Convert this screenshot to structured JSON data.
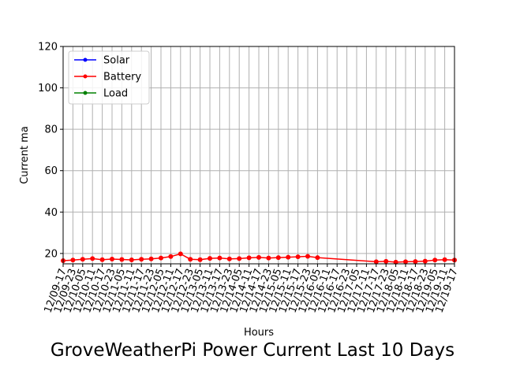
{
  "chart_data": {
    "type": "line",
    "title": "GroveWeatherPi Power Current Last 10 Days",
    "xlabel": "Hours",
    "ylabel": "Current ma",
    "ylim": [
      15,
      120
    ],
    "yticks": [
      20,
      40,
      60,
      80,
      100,
      120
    ],
    "x_start": "12/09-17",
    "x_end": "12/19-17",
    "xticks": [
      "12/09-17",
      "12/09-23",
      "12/10-05",
      "12/10-11",
      "12/10-17",
      "12/10-23",
      "12/11-05",
      "12/11-11",
      "12/11-17",
      "12/11-23",
      "12/12-05",
      "12/12-11",
      "12/12-17",
      "12/12-23",
      "12/13-05",
      "12/13-11",
      "12/13-17",
      "12/13-23",
      "12/14-05",
      "12/14-11",
      "12/14-17",
      "12/14-23",
      "12/15-05",
      "12/15-11",
      "12/15-17",
      "12/15-23",
      "12/16-05",
      "12/16-11",
      "12/16-17",
      "12/16-23",
      "12/17-05",
      "12/17-11",
      "12/17-17",
      "12/17-23",
      "12/18-05",
      "12/18-11",
      "12/18-17",
      "12/18-23",
      "12/19-05",
      "12/19-11",
      "12/19-17"
    ],
    "grid": true,
    "legend_position": "top-left",
    "series": [
      {
        "name": "Solar",
        "color": "#0000ff",
        "x": [],
        "y": []
      },
      {
        "name": "Battery",
        "color": "#ff0000",
        "x": [
          "12/09-17",
          "12/09-23",
          "12/10-05",
          "12/10-11",
          "12/10-17",
          "12/10-23",
          "12/11-05",
          "12/11-11",
          "12/11-17",
          "12/11-23",
          "12/12-05",
          "12/12-11",
          "12/12-17",
          "12/12-23",
          "12/13-05",
          "12/13-11",
          "12/13-17",
          "12/13-23",
          "12/14-05",
          "12/14-11",
          "12/14-17",
          "12/14-23",
          "12/15-05",
          "12/15-11",
          "12/15-17",
          "12/15-23",
          "12/16-05",
          "12/17-17",
          "12/17-23",
          "12/18-05",
          "12/18-11",
          "12/18-17",
          "12/18-23",
          "12/19-05",
          "12/19-11",
          "12/19-17"
        ],
        "y": [
          16.5,
          16.8,
          17.2,
          17.5,
          17.0,
          17.3,
          17.1,
          16.9,
          17.2,
          17.4,
          17.8,
          18.5,
          19.8,
          17.2,
          17.0,
          17.6,
          17.8,
          17.4,
          17.5,
          17.9,
          18.1,
          17.8,
          18.0,
          18.2,
          18.4,
          18.6,
          18.0,
          16.0,
          16.2,
          15.8,
          16.0,
          16.1,
          16.3,
          16.8,
          17.0,
          16.8
        ]
      },
      {
        "name": "Load",
        "color": "#008000",
        "x": [],
        "y": []
      }
    ]
  }
}
